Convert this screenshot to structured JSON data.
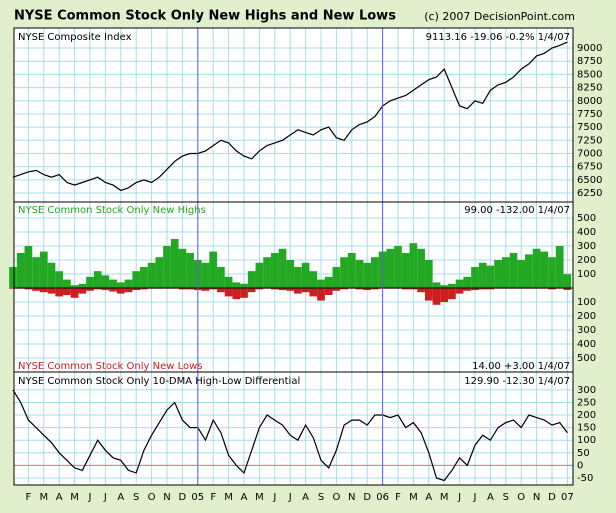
{
  "title": "NYSE Common Stock Only New Highs and New Lows",
  "copyright": "(c) 2007 DecisionPoint.com",
  "x_axis_labels": [
    "F",
    "M",
    "A",
    "M",
    "J",
    "J",
    "A",
    "S",
    "O",
    "N",
    "D",
    "05",
    "F",
    "M",
    "A",
    "M",
    "J",
    "J",
    "A",
    "S",
    "O",
    "N",
    "D",
    "06",
    "F",
    "M",
    "A",
    "M",
    "J",
    "J",
    "A",
    "S",
    "O",
    "N",
    "D",
    "07"
  ],
  "chart_data": [
    {
      "type": "line",
      "label": "NYSE Composite Index",
      "readout": "9113.16 -19.06 -0.2% 1/4/07",
      "color": "#000000",
      "values": [
        6550,
        6600,
        6650,
        6680,
        6600,
        6550,
        6600,
        6450,
        6400,
        6450,
        6500,
        6550,
        6450,
        6400,
        6300,
        6350,
        6450,
        6500,
        6450,
        6550,
        6700,
        6850,
        6950,
        7000,
        7000,
        7050,
        7150,
        7250,
        7200,
        7050,
        6950,
        6900,
        7050,
        7150,
        7200,
        7250,
        7350,
        7450,
        7400,
        7350,
        7450,
        7500,
        7300,
        7250,
        7450,
        7550,
        7600,
        7700,
        7900,
        8000,
        8050,
        8100,
        8200,
        8300,
        8400,
        8450,
        8600,
        8250,
        7900,
        7850,
        8000,
        7950,
        8200,
        8300,
        8350,
        8450,
        8600,
        8700,
        8850,
        8900,
        9000,
        9050,
        9113.16
      ],
      "ylim": [
        6080,
        9380
      ],
      "yticks": [
        6250,
        6500,
        6750,
        7000,
        7250,
        7500,
        7750,
        8000,
        8250,
        8500,
        8750,
        9000
      ],
      "grid": true
    },
    {
      "type": "bar",
      "series": [
        {
          "name": "NYSE Common Stock Only New Highs",
          "readout": "99.00 -132.00 1/4/07",
          "color": "#22a822",
          "values": [
            150,
            250,
            300,
            220,
            260,
            180,
            120,
            60,
            20,
            30,
            80,
            120,
            90,
            60,
            40,
            60,
            120,
            150,
            180,
            220,
            300,
            350,
            280,
            250,
            200,
            180,
            260,
            150,
            80,
            40,
            30,
            120,
            180,
            220,
            250,
            280,
            200,
            150,
            180,
            120,
            60,
            80,
            150,
            220,
            250,
            200,
            180,
            220,
            260,
            280,
            300,
            250,
            320,
            280,
            200,
            40,
            20,
            30,
            60,
            80,
            150,
            180,
            160,
            200,
            220,
            250,
            200,
            240,
            280,
            260,
            220,
            300,
            99
          ]
        },
        {
          "name": "NYSE Common Stock Only New Lows",
          "readout": "14.00 +3.00 1/4/07",
          "color": "#cc2020",
          "axis": "y2",
          "values": [
            5,
            5,
            10,
            20,
            30,
            40,
            60,
            50,
            70,
            40,
            20,
            10,
            15,
            25,
            40,
            30,
            15,
            10,
            5,
            5,
            5,
            5,
            10,
            10,
            15,
            20,
            10,
            30,
            60,
            80,
            70,
            30,
            10,
            5,
            10,
            15,
            20,
            40,
            30,
            60,
            90,
            50,
            20,
            10,
            5,
            10,
            15,
            10,
            5,
            5,
            5,
            10,
            10,
            30,
            90,
            120,
            100,
            80,
            40,
            20,
            15,
            10,
            10,
            5,
            5,
            5,
            5,
            5,
            5,
            5,
            10,
            5,
            14
          ]
        }
      ],
      "ylim": [
        0,
        614
      ],
      "yticks": [
        100,
        200,
        300,
        400,
        500
      ],
      "y2lim": [
        0,
        600
      ],
      "y2ticks": [
        100,
        200,
        300,
        400,
        500
      ],
      "y2_inverted": true,
      "grid": true
    },
    {
      "type": "line",
      "label": "NYSE Common Stock Only 10-DMA High-Low Differential",
      "readout": "129.90 -12.30 1/4/07",
      "color": "#000000",
      "values": [
        300,
        250,
        180,
        150,
        120,
        90,
        50,
        20,
        -10,
        -20,
        40,
        100,
        60,
        30,
        20,
        -20,
        -30,
        60,
        120,
        170,
        220,
        250,
        180,
        150,
        150,
        100,
        180,
        130,
        40,
        0,
        -30,
        60,
        150,
        200,
        180,
        160,
        120,
        100,
        160,
        110,
        20,
        -10,
        60,
        160,
        180,
        180,
        160,
        200,
        200,
        190,
        200,
        150,
        170,
        130,
        50,
        -50,
        -60,
        -20,
        30,
        0,
        80,
        120,
        100,
        150,
        170,
        180,
        150,
        200,
        190,
        180,
        160,
        170,
        129.9
      ],
      "ylim": [
        -78,
        371
      ],
      "yticks": [
        -50,
        0,
        50,
        100,
        150,
        200,
        250,
        300
      ],
      "zero_line_color": "#e08040",
      "grid": true
    }
  ]
}
